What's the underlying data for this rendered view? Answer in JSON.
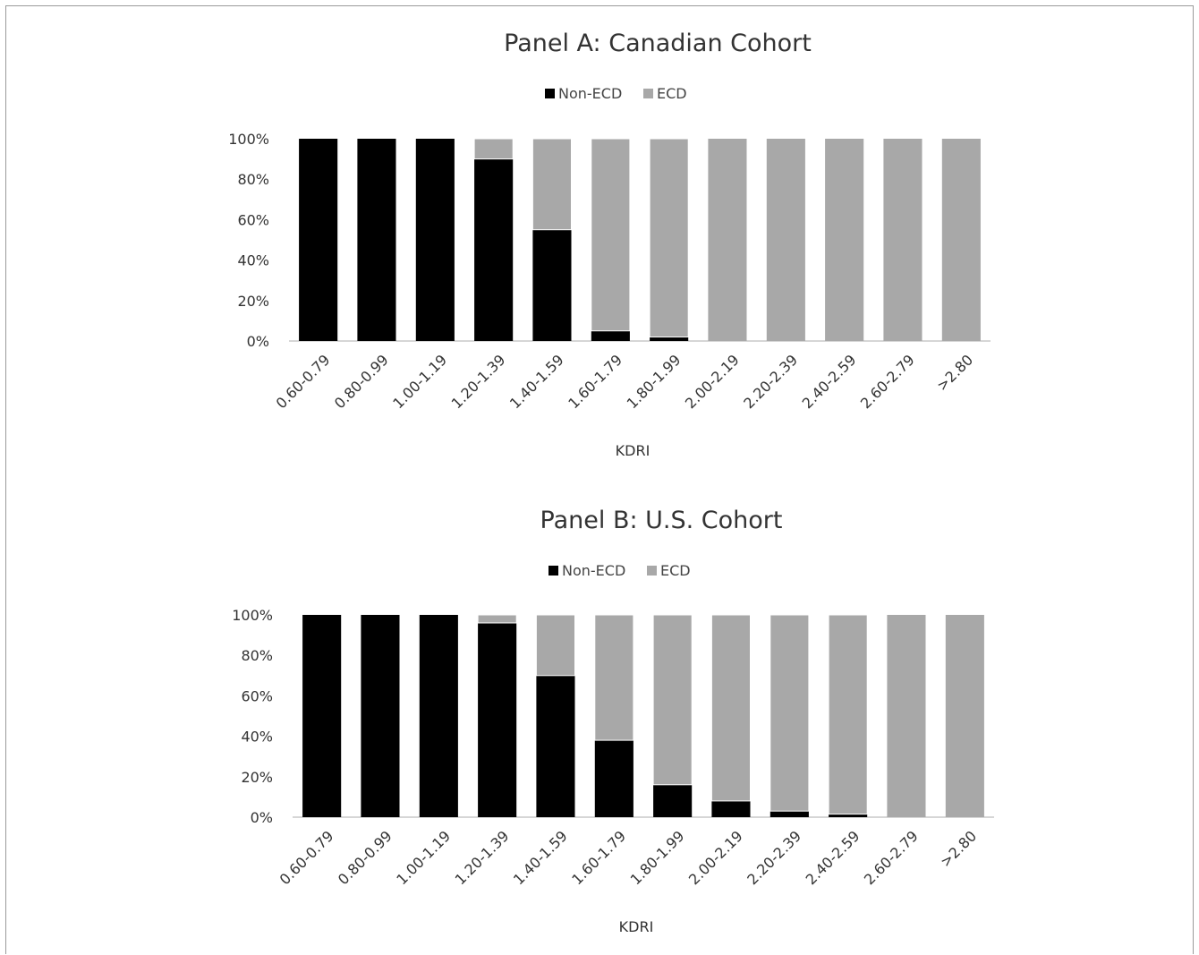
{
  "colors": {
    "non_ecd": "#000000",
    "ecd": "#a8a8a8",
    "axis": "#c8c8c8",
    "text": "#333333"
  },
  "chart_data": [
    {
      "type": "bar",
      "stacked": true,
      "percent_stacked": true,
      "title": "Panel A: Canadian Cohort",
      "xlabel": "KDRI",
      "ylabel": "",
      "ylim": [
        0,
        100
      ],
      "yticks": [
        "0%",
        "20%",
        "40%",
        "60%",
        "80%",
        "100%"
      ],
      "legend": {
        "position": "top",
        "entries": [
          "Non-ECD",
          "ECD"
        ]
      },
      "grid": false,
      "categories": [
        "0.60-0.79",
        "0.80-0.99",
        "1.00-1.19",
        "1.20-1.39",
        "1.40-1.59",
        "1.60-1.79",
        "1.80-1.99",
        "2.00-2.19",
        "2.20-2.39",
        "2.40-2.59",
        "2.60-2.79",
        ">2.80"
      ],
      "series": [
        {
          "name": "Non-ECD",
          "values": [
            100,
            100,
            100,
            90,
            55,
            5,
            2,
            0,
            0,
            0,
            0,
            0
          ]
        },
        {
          "name": "ECD",
          "values": [
            0,
            0,
            0,
            10,
            45,
            95,
            98,
            100,
            100,
            100,
            100,
            100
          ]
        }
      ]
    },
    {
      "type": "bar",
      "stacked": true,
      "percent_stacked": true,
      "title": "Panel B: U.S. Cohort",
      "xlabel": "KDRI",
      "ylabel": "",
      "ylim": [
        0,
        100
      ],
      "yticks": [
        "0%",
        "20%",
        "40%",
        "60%",
        "80%",
        "100%"
      ],
      "legend": {
        "position": "top",
        "entries": [
          "Non-ECD",
          "ECD"
        ]
      },
      "grid": false,
      "categories": [
        "0.60-0.79",
        "0.80-0.99",
        "1.00-1.19",
        "1.20-1.39",
        "1.40-1.59",
        "1.60-1.79",
        "1.80-1.99",
        "2.00-2.19",
        "2.20-2.39",
        "2.40-2.59",
        "2.60-2.79",
        ">2.80"
      ],
      "series": [
        {
          "name": "Non-ECD",
          "values": [
            100,
            100,
            100,
            96,
            70,
            38,
            16,
            8,
            3,
            1.5,
            0,
            0
          ]
        },
        {
          "name": "ECD",
          "values": [
            0,
            0,
            0,
            4,
            30,
            62,
            84,
            92,
            97,
            98.5,
            100,
            100
          ]
        }
      ]
    }
  ]
}
